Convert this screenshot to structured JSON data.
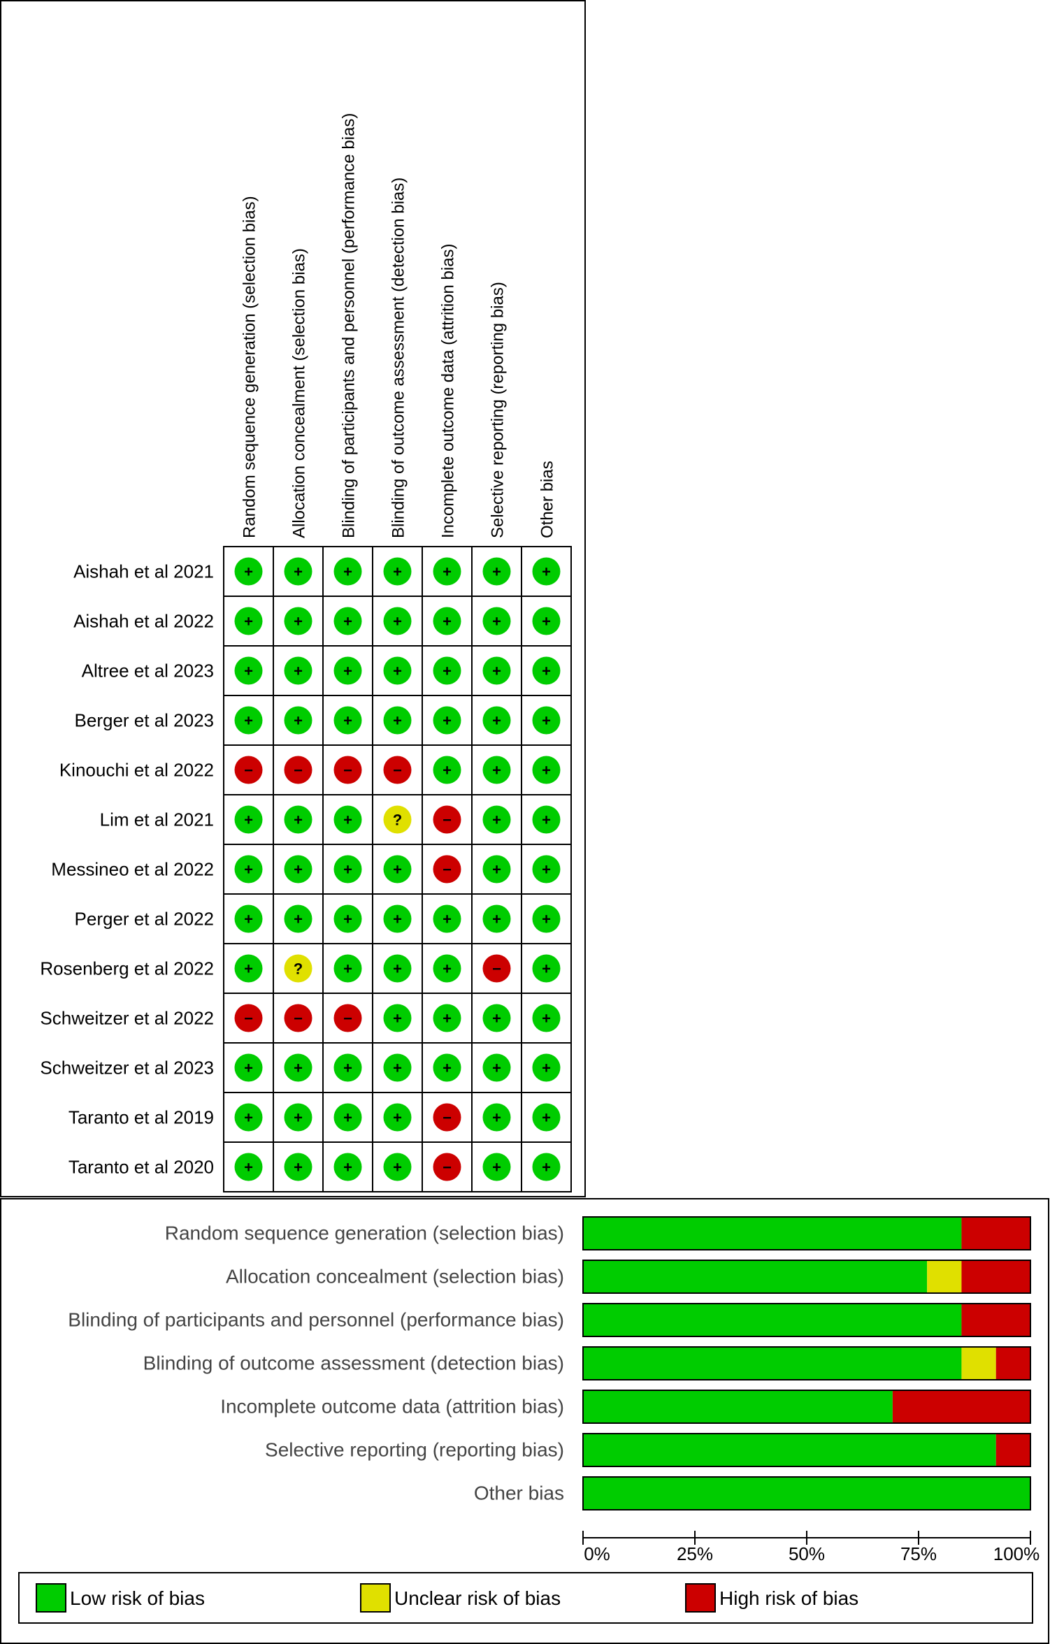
{
  "chart_data": [
    {
      "type": "table",
      "domains": [
        "Random sequence generation (selection bias)",
        "Allocation concealment (selection bias)",
        "Blinding of participants and personnel (performance bias)",
        "Blinding of outcome assessment (detection bias)",
        "Incomplete outcome data (attrition bias)",
        "Selective reporting (reporting bias)",
        "Other bias"
      ],
      "studies": [
        {
          "name": "Aishah et al 2021",
          "judgements": [
            "low",
            "low",
            "low",
            "low",
            "low",
            "low",
            "low"
          ]
        },
        {
          "name": "Aishah et al 2022",
          "judgements": [
            "low",
            "low",
            "low",
            "low",
            "low",
            "low",
            "low"
          ]
        },
        {
          "name": "Altree et al 2023",
          "judgements": [
            "low",
            "low",
            "low",
            "low",
            "low",
            "low",
            "low"
          ]
        },
        {
          "name": "Berger et al 2023",
          "judgements": [
            "low",
            "low",
            "low",
            "low",
            "low",
            "low",
            "low"
          ]
        },
        {
          "name": "Kinouchi et al 2022",
          "judgements": [
            "high",
            "high",
            "high",
            "high",
            "low",
            "low",
            "low"
          ]
        },
        {
          "name": "Lim et al 2021",
          "judgements": [
            "low",
            "low",
            "low",
            "unclear",
            "high",
            "low",
            "low"
          ]
        },
        {
          "name": "Messineo et al 2022",
          "judgements": [
            "low",
            "low",
            "low",
            "low",
            "high",
            "low",
            "low"
          ]
        },
        {
          "name": "Perger et al 2022",
          "judgements": [
            "low",
            "low",
            "low",
            "low",
            "low",
            "low",
            "low"
          ]
        },
        {
          "name": "Rosenberg et al 2022",
          "judgements": [
            "low",
            "unclear",
            "low",
            "low",
            "low",
            "high",
            "low"
          ]
        },
        {
          "name": "Schweitzer et al 2022",
          "judgements": [
            "high",
            "high",
            "high",
            "low",
            "low",
            "low",
            "low"
          ]
        },
        {
          "name": "Schweitzer et al 2023",
          "judgements": [
            "low",
            "low",
            "low",
            "low",
            "low",
            "low",
            "low"
          ]
        },
        {
          "name": "Taranto et al 2019",
          "judgements": [
            "low",
            "low",
            "low",
            "low",
            "high",
            "low",
            "low"
          ]
        },
        {
          "name": "Taranto et al 2020",
          "judgements": [
            "low",
            "low",
            "low",
            "low",
            "high",
            "low",
            "low"
          ]
        }
      ],
      "symbols": {
        "low": "+",
        "unclear": "?",
        "high": "−"
      }
    },
    {
      "type": "bar",
      "stacked": true,
      "orientation": "horizontal",
      "categories": [
        "Random sequence generation (selection bias)",
        "Allocation concealment (selection bias)",
        "Blinding of participants and personnel (performance bias)",
        "Blinding of outcome assessment (detection bias)",
        "Incomplete outcome data (attrition bias)",
        "Selective reporting (reporting bias)",
        "Other bias"
      ],
      "series": [
        {
          "name": "Low risk of bias",
          "values": [
            84.6,
            76.9,
            84.6,
            84.6,
            69.2,
            92.3,
            100
          ]
        },
        {
          "name": "Unclear risk of bias",
          "values": [
            0,
            7.7,
            0,
            7.7,
            0,
            0,
            0
          ]
        },
        {
          "name": "High risk of bias",
          "values": [
            15.4,
            15.4,
            15.4,
            7.7,
            30.8,
            7.7,
            0
          ]
        }
      ],
      "xlim": [
        0,
        100
      ],
      "ticks": [
        "0%",
        "25%",
        "50%",
        "75%",
        "100%"
      ],
      "legend_position": "bottom"
    }
  ],
  "colors": {
    "low": "#00cc00",
    "unclear": "#e0e000",
    "high": "#cc0000",
    "border": "#000000"
  }
}
